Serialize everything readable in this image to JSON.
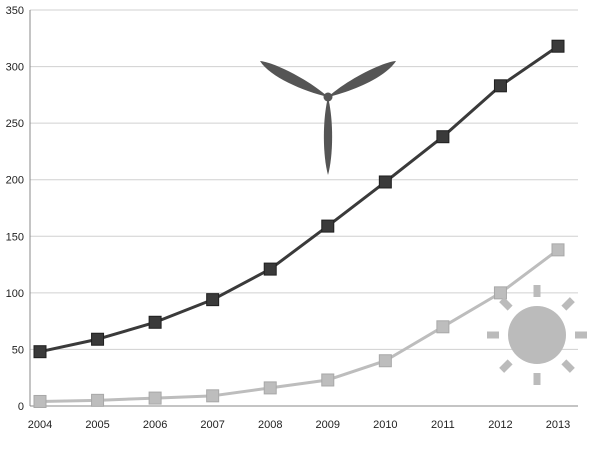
{
  "chart_data": {
    "type": "line",
    "title": "",
    "xlabel": "",
    "ylabel": "",
    "categories": [
      "2004",
      "2005",
      "2006",
      "2007",
      "2008",
      "2009",
      "2010",
      "2011",
      "2012",
      "2013"
    ],
    "ylim": [
      0,
      350
    ],
    "yticks": [
      "0",
      "50",
      "100",
      "150",
      "200",
      "250",
      "300",
      "350"
    ],
    "grid": "horizontal",
    "legend": "none",
    "series": [
      {
        "icon": "wind-turbine-icon",
        "color": "#3a3a3a",
        "marker": "square",
        "values": [
          48,
          59,
          74,
          94,
          121,
          159,
          198,
          238,
          283,
          318
        ]
      },
      {
        "icon": "sun-icon",
        "color": "#bdbdbd",
        "marker": "square",
        "values": [
          4,
          5,
          7,
          9,
          16,
          23,
          40,
          70,
          100,
          138
        ]
      }
    ]
  },
  "decorations": {
    "wind_icon": "wind-turbine-icon",
    "sun_icon": "sun-icon",
    "sun_color": "#bbbbbb",
    "turbine_color": "#555555"
  }
}
